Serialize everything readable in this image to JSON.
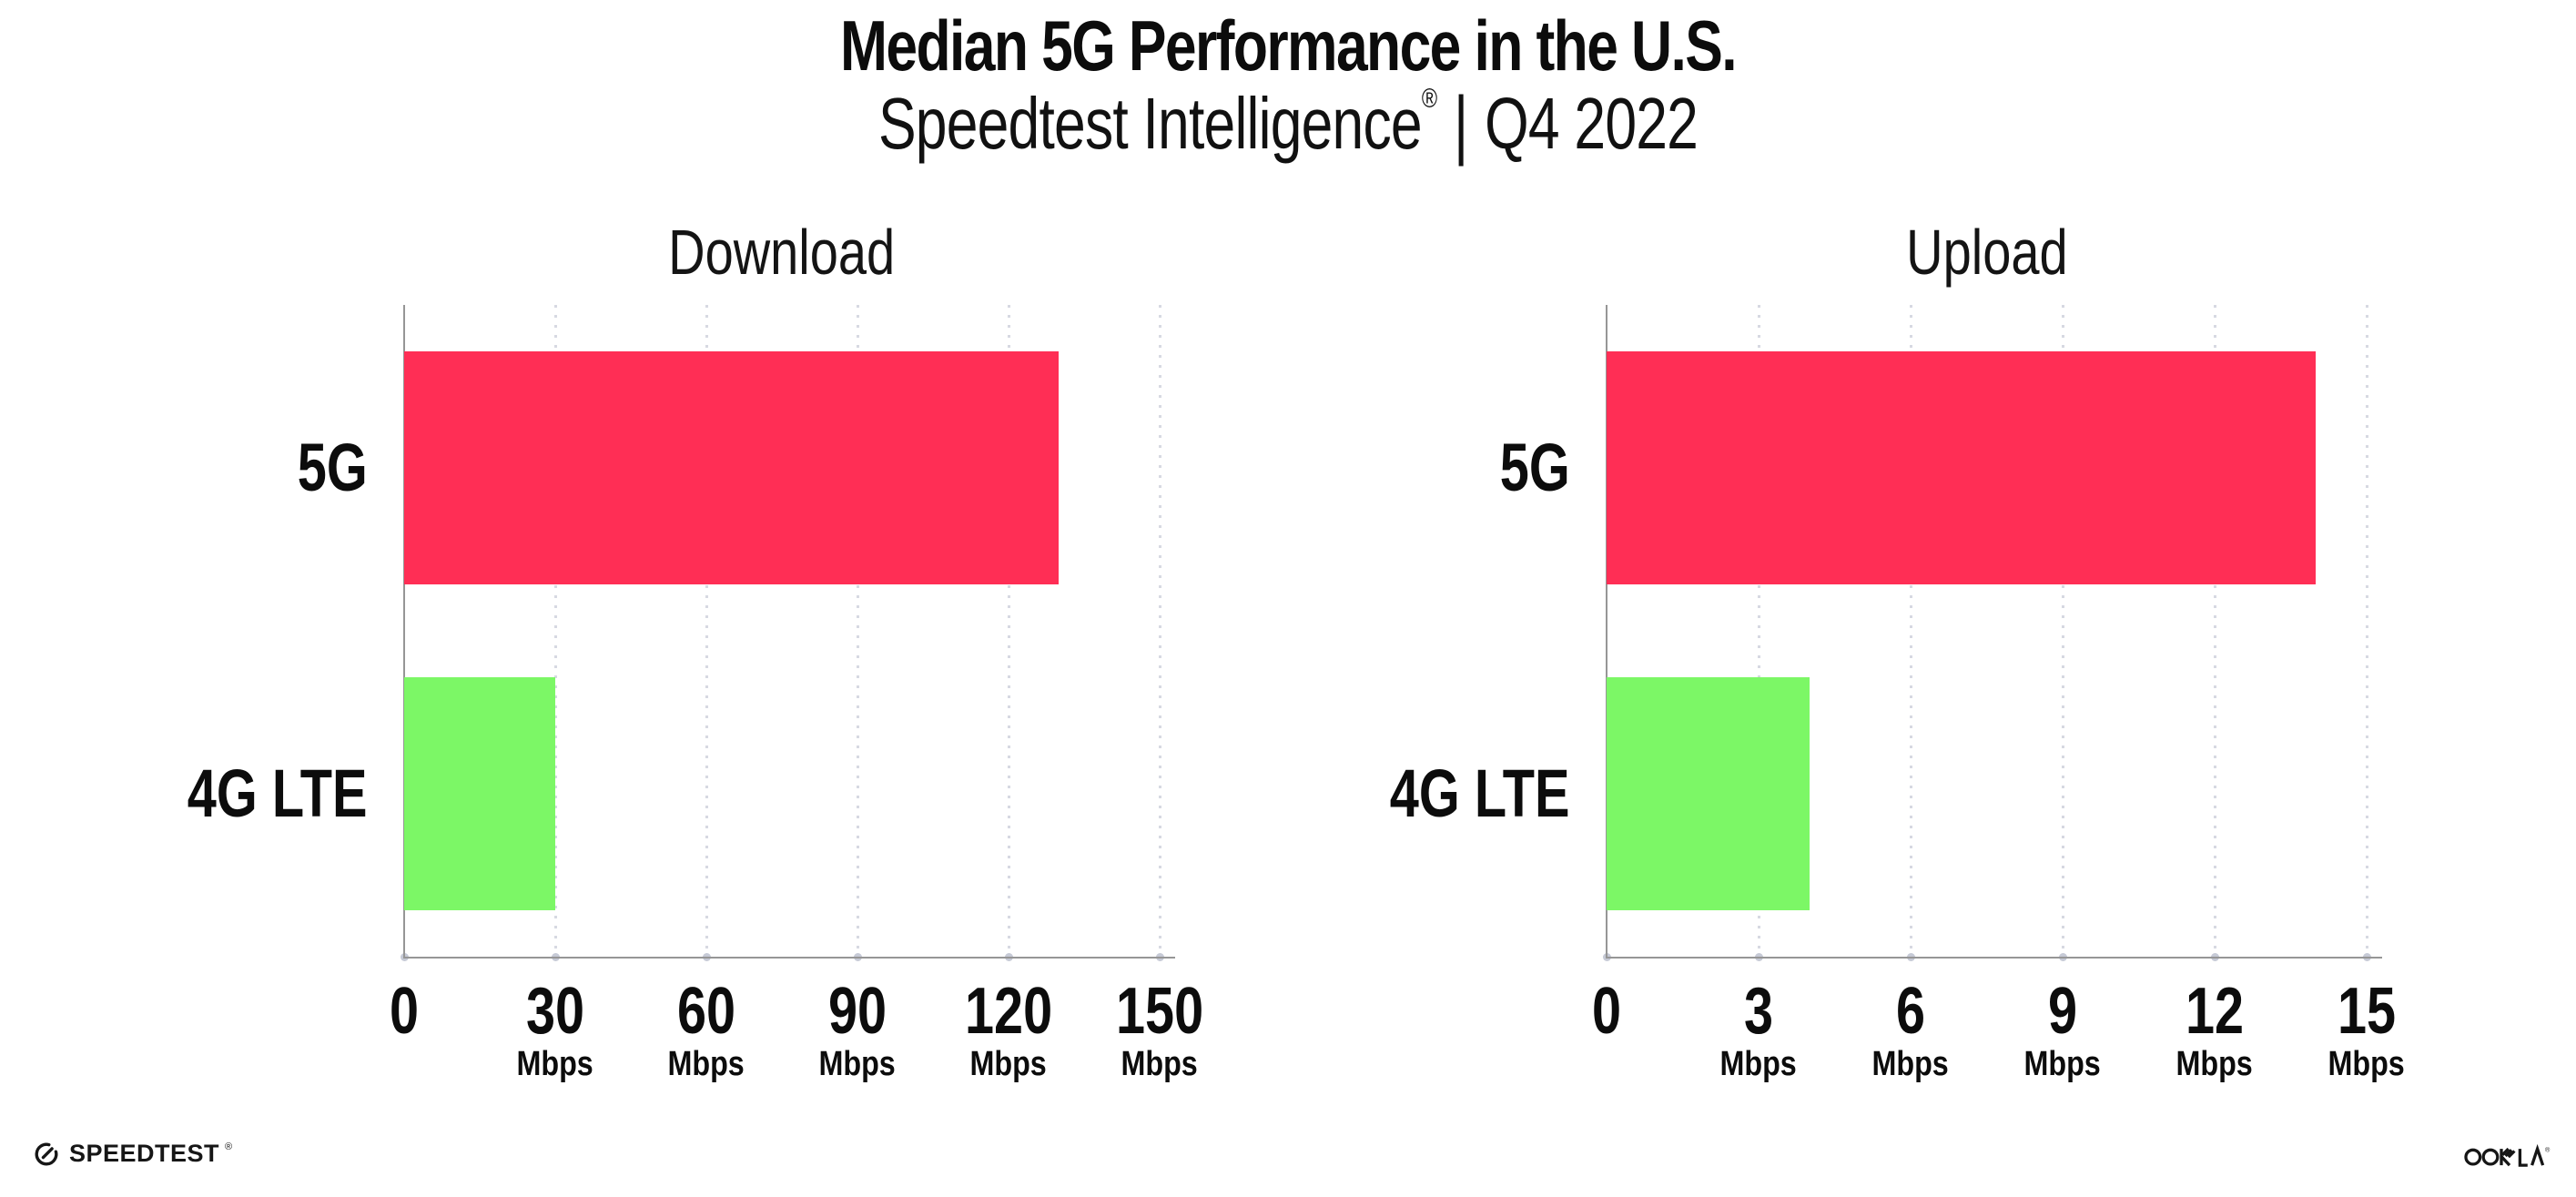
{
  "header": {
    "title": "Median 5G Performance in the U.S.",
    "subtitle_product": "Speedtest Intelligence",
    "subtitle_mark": "®",
    "subtitle_divider": "|",
    "subtitle_quarter": "Q4 2022"
  },
  "chart_data": [
    {
      "type": "bar",
      "orientation": "horizontal",
      "title": "Download",
      "categories": [
        "5G",
        "4G LTE"
      ],
      "values": [
        130,
        30
      ],
      "unit": "Mbps",
      "xlabel": "",
      "ylabel": "",
      "xlim": [
        0,
        150
      ],
      "xticks": [
        0,
        30,
        60,
        90,
        120,
        150
      ],
      "bar_colors": [
        "#ff2e55",
        "#7cf766"
      ],
      "grid": "vertical-dotted",
      "legend": "none"
    },
    {
      "type": "bar",
      "orientation": "horizontal",
      "title": "Upload",
      "categories": [
        "5G",
        "4G LTE"
      ],
      "values": [
        14,
        4
      ],
      "unit": "Mbps",
      "xlabel": "",
      "ylabel": "",
      "xlim": [
        0,
        15
      ],
      "xticks": [
        0,
        3,
        6,
        9,
        12,
        15
      ],
      "bar_colors": [
        "#ff2e55",
        "#7cf766"
      ],
      "grid": "vertical-dotted",
      "legend": "none"
    }
  ],
  "footer": {
    "speedtest_wordmark": "SPEEDTEST",
    "speedtest_mark": "®",
    "ookla_wordmark": "OOKLA",
    "ookla_mark": "®"
  },
  "colors": {
    "bar_5g": "#ff2e55",
    "bar_4g_lte": "#7cf766",
    "axis": "#969696",
    "gridline_dot": "#d7d9e2",
    "axis_tick_dot": "#c6cad6",
    "text": "#0c0c0c",
    "background": "#ffffff"
  }
}
